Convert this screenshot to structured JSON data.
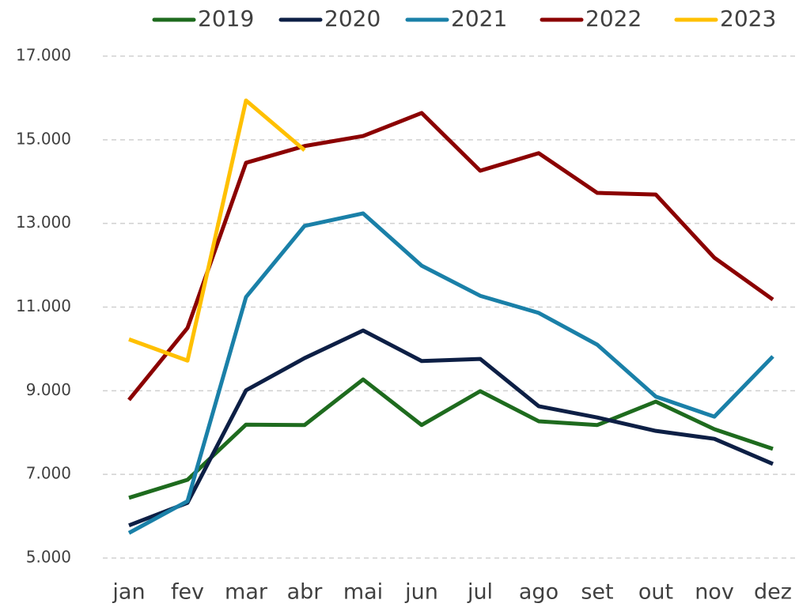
{
  "chart_data": {
    "type": "line",
    "categories": [
      "jan",
      "fev",
      "mar",
      "abr",
      "mai",
      "jun",
      "jul",
      "ago",
      "set",
      "out",
      "nov",
      "dez"
    ],
    "series": [
      {
        "name": "2019",
        "color": "#1e6b1e",
        "values": [
          6440,
          6870,
          8190,
          8180,
          9270,
          8180,
          8990,
          8270,
          8180,
          8740,
          8080,
          7610
        ]
      },
      {
        "name": "2020",
        "color": "#0d1f45",
        "values": [
          5780,
          6320,
          9010,
          9780,
          10440,
          9710,
          9760,
          8630,
          8360,
          8040,
          7850,
          7250
        ]
      },
      {
        "name": "2021",
        "color": "#1a80a8",
        "values": [
          5600,
          6360,
          11240,
          12940,
          13240,
          11990,
          11270,
          10860,
          10100,
          8860,
          8380,
          9820
        ]
      },
      {
        "name": "2022",
        "color": "#8b0000",
        "values": [
          8780,
          10500,
          14450,
          14850,
          15090,
          15640,
          14260,
          14680,
          13730,
          13690,
          12180,
          11180
        ]
      },
      {
        "name": "2023",
        "color": "#ffc000",
        "values": [
          10230,
          9720,
          15940,
          14750,
          null,
          null,
          null,
          null,
          null,
          null,
          null,
          null
        ]
      }
    ],
    "ylim": [
      5000,
      17000
    ],
    "yticks": [
      {
        "value": 5000,
        "label": "5.000"
      },
      {
        "value": 7000,
        "label": "7.000"
      },
      {
        "value": 9000,
        "label": "9.000"
      },
      {
        "value": 11000,
        "label": "11.000"
      },
      {
        "value": 13000,
        "label": "13.000"
      },
      {
        "value": 15000,
        "label": "15.000"
      },
      {
        "value": 17000,
        "label": "17.000"
      }
    ],
    "grid": true,
    "legend": "top"
  }
}
